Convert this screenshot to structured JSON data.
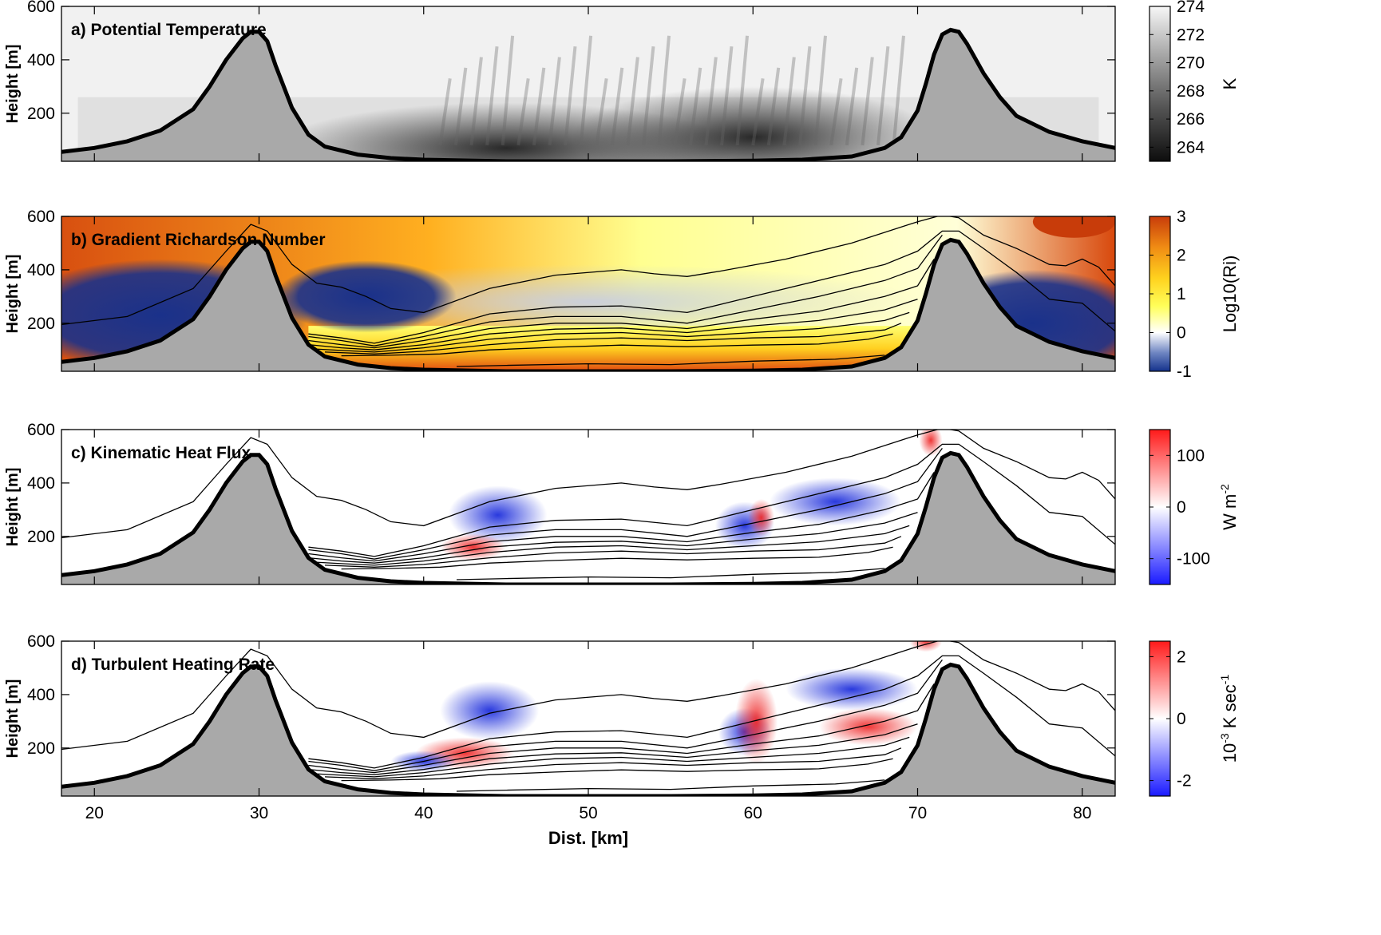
{
  "chart_data": [
    {
      "type": "heatmap",
      "title": "a) Potential Temperature",
      "ylabel": "Height [m]",
      "xlim": [
        18,
        82
      ],
      "ylim": [
        20,
        600
      ],
      "yticks": [
        "200",
        "400",
        "600"
      ],
      "colorbar": {
        "label": "K",
        "ticks": [
          "264",
          "266",
          "268",
          "270",
          "272",
          "274"
        ],
        "range": [
          263,
          274
        ],
        "colormap": "gray"
      },
      "overlay_contours": false
    },
    {
      "type": "heatmap",
      "title": "b) Gradient Richardson Number",
      "ylabel": "Height [m]",
      "xlim": [
        18,
        82
      ],
      "ylim": [
        20,
        600
      ],
      "yticks": [
        "200",
        "400",
        "600"
      ],
      "colorbar": {
        "label": "Log10(Ri)",
        "ticks": [
          "-1",
          "0",
          "1",
          "2",
          "3"
        ],
        "range": [
          -1,
          3
        ],
        "colormap": "blue-white-yellow-red"
      },
      "overlay_contours": true
    },
    {
      "type": "heatmap",
      "title": "c) Kinematic Heat Flux",
      "ylabel": "Height [m]",
      "xlim": [
        18,
        82
      ],
      "ylim": [
        20,
        600
      ],
      "yticks": [
        "200",
        "400",
        "600"
      ],
      "colorbar": {
        "label": "W m",
        "label_sup": "-2",
        "ticks": [
          "-100",
          "0",
          "100"
        ],
        "range": [
          -150,
          150
        ],
        "colormap": "blue-white-red"
      },
      "overlay_contours": true
    },
    {
      "type": "heatmap",
      "title": "d) Turbulent Heating Rate",
      "ylabel": "Height [m]",
      "xlim": [
        18,
        82
      ],
      "ylim": [
        20,
        600
      ],
      "yticks": [
        "200",
        "400",
        "600"
      ],
      "xlabel": "Dist. [km]",
      "xticks": [
        "20",
        "30",
        "40",
        "50",
        "60",
        "70",
        "80"
      ],
      "colorbar": {
        "label_pre": "10",
        "label_pre_sup": "-3",
        "label": " K  sec",
        "label_sup": "-1",
        "ticks": [
          "-2",
          "0",
          "2"
        ],
        "range": [
          -2.5,
          2.5
        ],
        "colormap": "blue-white-red"
      },
      "overlay_contours": true
    }
  ],
  "terrain": {
    "description_free": true,
    "x": [
      18,
      20,
      22,
      24,
      26,
      27,
      28,
      29,
      29.5,
      30,
      30.5,
      31,
      32,
      33,
      34,
      36,
      38,
      40,
      45,
      50,
      55,
      60,
      63,
      66,
      68,
      69,
      70,
      70.5,
      71,
      71.5,
      72,
      72.5,
      73,
      74,
      75,
      76,
      78,
      80,
      82
    ],
    "h": [
      55,
      70,
      95,
      135,
      215,
      300,
      400,
      480,
      505,
      505,
      470,
      380,
      220,
      120,
      75,
      45,
      32,
      26,
      20,
      20,
      20,
      22,
      26,
      38,
      70,
      110,
      210,
      310,
      420,
      495,
      512,
      505,
      460,
      350,
      260,
      190,
      130,
      95,
      70
    ],
    "fill": "#a9a9a9"
  },
  "isentropes": [
    {
      "x": [
        18,
        22,
        26,
        28,
        29.5,
        30.5,
        32,
        33.5,
        35,
        36.5,
        38,
        40,
        44,
        48,
        52,
        54,
        56,
        58,
        62,
        66,
        70,
        71.5,
        72.5,
        74,
        76,
        78,
        79,
        80,
        81,
        82
      ],
      "h": [
        195,
        225,
        330,
        470,
        570,
        545,
        420,
        350,
        335,
        300,
        255,
        240,
        330,
        380,
        400,
        385,
        375,
        395,
        440,
        500,
        580,
        605,
        595,
        530,
        480,
        420,
        415,
        440,
        410,
        340
      ]
    },
    {
      "x": [
        33,
        35,
        37,
        40,
        44,
        48,
        52,
        56,
        60,
        64,
        68,
        70,
        71.5,
        72.5,
        74,
        76,
        78,
        80,
        82
      ],
      "h": [
        160,
        145,
        125,
        165,
        235,
        260,
        265,
        240,
        300,
        360,
        420,
        470,
        545,
        545,
        480,
        390,
        290,
        275,
        170
      ]
    },
    {
      "x": [
        33,
        35,
        37,
        40,
        44,
        48,
        52,
        56,
        60,
        64,
        68,
        70,
        71.5
      ],
      "h": [
        150,
        135,
        115,
        150,
        205,
        225,
        225,
        200,
        250,
        300,
        360,
        405,
        530
      ]
    },
    {
      "x": [
        33,
        35,
        37,
        40,
        44,
        48,
        52,
        56,
        60,
        64,
        68,
        70,
        71
      ],
      "h": [
        135,
        120,
        108,
        135,
        180,
        200,
        200,
        180,
        215,
        245,
        300,
        340,
        440
      ]
    },
    {
      "x": [
        33,
        35,
        37,
        40,
        44,
        48,
        52,
        56,
        60,
        64,
        68,
        70
      ],
      "h": [
        120,
        108,
        100,
        120,
        160,
        178,
        182,
        165,
        190,
        210,
        250,
        290
      ]
    },
    {
      "x": [
        33,
        35,
        37,
        40,
        44,
        48,
        52,
        56,
        60,
        64,
        68,
        69.5
      ],
      "h": [
        105,
        98,
        92,
        108,
        140,
        160,
        165,
        150,
        165,
        180,
        210,
        240
      ]
    },
    {
      "x": [
        34,
        37,
        40,
        44,
        48,
        52,
        56,
        60,
        64,
        68,
        69
      ],
      "h": [
        92,
        85,
        95,
        120,
        138,
        145,
        135,
        145,
        150,
        175,
        200
      ]
    },
    {
      "x": [
        35,
        38,
        41,
        44,
        48,
        52,
        56,
        60,
        64,
        67,
        68.5
      ],
      "h": [
        78,
        80,
        85,
        100,
        110,
        118,
        112,
        118,
        122,
        140,
        160
      ]
    },
    {
      "x": [
        42,
        45,
        50,
        55,
        60,
        65,
        68
      ],
      "h": [
        38,
        42,
        48,
        45,
        58,
        65,
        80
      ]
    }
  ],
  "axes": {
    "tick_color": "#000000",
    "terrain_color": "#a9a9a9",
    "terrain_edge_color": "#000000"
  }
}
